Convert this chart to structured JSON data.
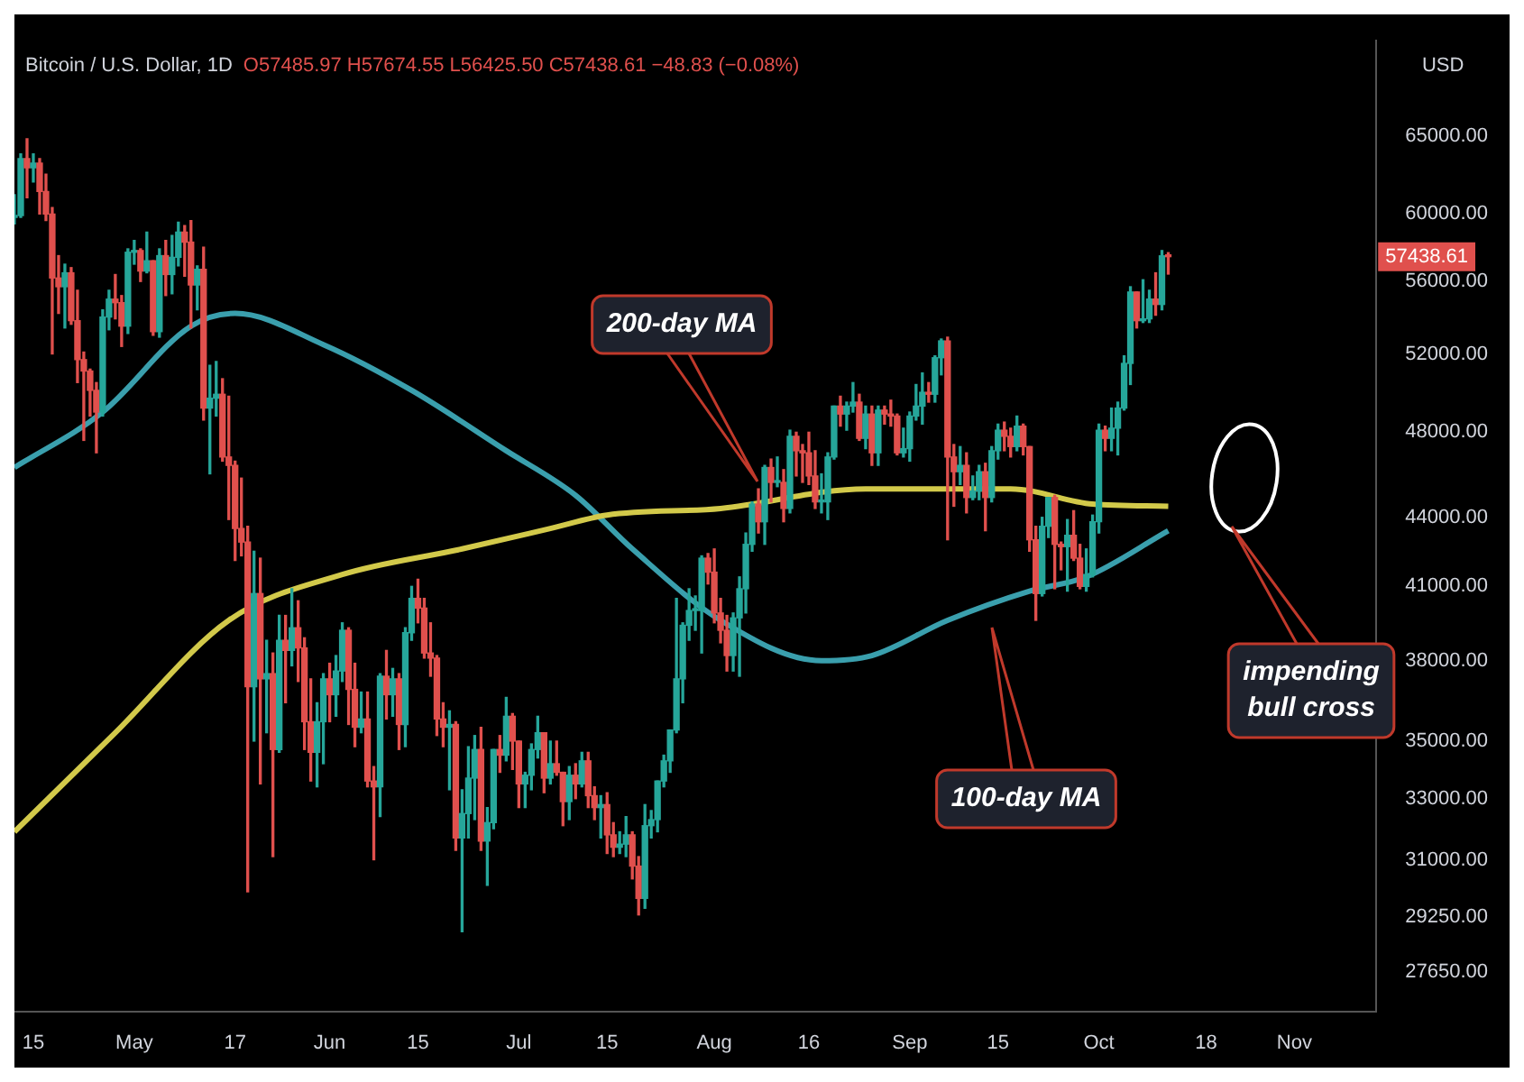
{
  "chart_data": {
    "type": "candlestick",
    "title": "Bitcoin / U.S. Dollar, 1D",
    "subtitle": "O57485.97 H57674.55 L56425.50 C57438.61 −48.83 (−0.08%)",
    "ylabel": "USD",
    "log": true,
    "xlim": [
      "--04-12",
      "--11-14"
    ],
    "xticks": [
      {
        "value": "--04-15",
        "label": "15"
      },
      {
        "value": "--05-01",
        "label": "May"
      },
      {
        "value": "--05-17",
        "label": "17"
      },
      {
        "value": "--06-01",
        "label": "Jun"
      },
      {
        "value": "--06-15",
        "label": "15"
      },
      {
        "value": "--07-01",
        "label": "Jul"
      },
      {
        "value": "--07-15",
        "label": "15"
      },
      {
        "value": "--08-01",
        "label": "Aug"
      },
      {
        "value": "--08-16",
        "label": "16"
      },
      {
        "value": "--09-01",
        "label": "Sep"
      },
      {
        "value": "--09-15",
        "label": "15"
      },
      {
        "value": "--10-01",
        "label": "Oct"
      },
      {
        "value": "--10-18",
        "label": "18"
      },
      {
        "value": "--11-01",
        "label": "Nov"
      }
    ],
    "ylim": [
      26550,
      71630
    ],
    "yticks": [
      {
        "value": 65000,
        "label": "65000.00"
      },
      {
        "value": 60000,
        "label": "60000.00"
      },
      {
        "value": 56000,
        "label": "56000.00"
      },
      {
        "value": 52000,
        "label": "52000.00"
      },
      {
        "value": 48000,
        "label": "48000.00"
      },
      {
        "value": 44000,
        "label": "44000.00"
      },
      {
        "value": 41000,
        "label": "41000.00"
      },
      {
        "value": 38000,
        "label": "38000.00"
      },
      {
        "value": 35000,
        "label": "35000.00"
      },
      {
        "value": 33000,
        "label": "33000.00"
      },
      {
        "value": 31000,
        "label": "31000.00"
      },
      {
        "value": 29250,
        "label": "29250.00"
      },
      {
        "value": 27650,
        "label": "27650.00"
      }
    ],
    "x": [
      "--04-12",
      "--04-13",
      "--04-14",
      "--04-15",
      "--04-16",
      "--04-17",
      "--04-18",
      "--04-19",
      "--04-20",
      "--04-21",
      "--04-22",
      "--04-23",
      "--04-24",
      "--04-25",
      "--04-26",
      "--04-27",
      "--04-28",
      "--04-29",
      "--04-30",
      "--05-01",
      "--05-02",
      "--05-03",
      "--05-04",
      "--05-05",
      "--05-06",
      "--05-07",
      "--05-08",
      "--05-09",
      "--05-10",
      "--05-11",
      "--05-12",
      "--05-13",
      "--05-14",
      "--05-15",
      "--05-16",
      "--05-17",
      "--05-18",
      "--05-19",
      "--05-20",
      "--05-21",
      "--05-22",
      "--05-23",
      "--05-24",
      "--05-25",
      "--05-26",
      "--05-27",
      "--05-28",
      "--05-29",
      "--05-30",
      "--05-31",
      "--06-01",
      "--06-02",
      "--06-03",
      "--06-04",
      "--06-05",
      "--06-06",
      "--06-07",
      "--06-08",
      "--06-09",
      "--06-10",
      "--06-11",
      "--06-12",
      "--06-13",
      "--06-14",
      "--06-15",
      "--06-16",
      "--06-17",
      "--06-18",
      "--06-19",
      "--06-20",
      "--06-21",
      "--06-22",
      "--06-23",
      "--06-24",
      "--06-25",
      "--06-26",
      "--06-27",
      "--06-28",
      "--06-29",
      "--06-30",
      "--07-01",
      "--07-02",
      "--07-03",
      "--07-04",
      "--07-05",
      "--07-06",
      "--07-07",
      "--07-08",
      "--07-09",
      "--07-10",
      "--07-11",
      "--07-12",
      "--07-13",
      "--07-14",
      "--07-15",
      "--07-16",
      "--07-17",
      "--07-18",
      "--07-19",
      "--07-20",
      "--07-21",
      "--07-22",
      "--07-23",
      "--07-24",
      "--07-25",
      "--07-26",
      "--07-27",
      "--07-28",
      "--07-29",
      "--07-30",
      "--07-31",
      "--08-01",
      "--08-02",
      "--08-03",
      "--08-04",
      "--08-05",
      "--08-06",
      "--08-07",
      "--08-08",
      "--08-09",
      "--08-10",
      "--08-11",
      "--08-12",
      "--08-13",
      "--08-14",
      "--08-15",
      "--08-16",
      "--08-17",
      "--08-18",
      "--08-19",
      "--08-20",
      "--08-21",
      "--08-22",
      "--08-23",
      "--08-24",
      "--08-25",
      "--08-26",
      "--08-27",
      "--08-28",
      "--08-29",
      "--08-30",
      "--08-31",
      "--09-01",
      "--09-02",
      "--09-03",
      "--09-04",
      "--09-05",
      "--09-06",
      "--09-07",
      "--09-08",
      "--09-09",
      "--09-10",
      "--09-11",
      "--09-12",
      "--09-13",
      "--09-14",
      "--09-15",
      "--09-16",
      "--09-17",
      "--09-18",
      "--09-19",
      "--09-20",
      "--09-21",
      "--09-22",
      "--09-23",
      "--09-24",
      "--09-25",
      "--09-26",
      "--09-27",
      "--09-28",
      "--09-29",
      "--09-30",
      "--10-01",
      "--10-02",
      "--10-03",
      "--10-04",
      "--10-05",
      "--10-06",
      "--10-07",
      "--10-08",
      "--10-09",
      "--10-10",
      "--10-11",
      "--10-12"
    ],
    "ohlc": [
      [
        59800,
        61200,
        59400,
        59900
      ],
      [
        59900,
        63800,
        59800,
        63500
      ],
      [
        63500,
        64800,
        61000,
        62900
      ],
      [
        62900,
        63800,
        62000,
        63200
      ],
      [
        63200,
        63500,
        60000,
        61400
      ],
      [
        61400,
        62500,
        59600,
        60000
      ],
      [
        60000,
        60400,
        52000,
        56200
      ],
      [
        56200,
        57500,
        54200,
        55700
      ],
      [
        55700,
        57000,
        53400,
        56500
      ],
      [
        56500,
        56800,
        53600,
        53800
      ],
      [
        53800,
        55500,
        50500,
        51700
      ],
      [
        51700,
        52100,
        47600,
        51100
      ],
      [
        51100,
        51200,
        48800,
        50100
      ],
      [
        50100,
        50500,
        47000,
        49000
      ],
      [
        49000,
        54400,
        48800,
        54000
      ],
      [
        54000,
        55500,
        53300,
        55000
      ],
      [
        55000,
        56400,
        53900,
        54800
      ],
      [
        54800,
        55200,
        52400,
        53500
      ],
      [
        53500,
        57900,
        53100,
        57700
      ],
      [
        57700,
        58400,
        57000,
        57800
      ],
      [
        57800,
        57900,
        56000,
        56600
      ],
      [
        56600,
        58900,
        56500,
        57200
      ],
      [
        57200,
        57200,
        53000,
        53200
      ],
      [
        53200,
        57900,
        52900,
        57500
      ],
      [
        57500,
        58400,
        55200,
        56400
      ],
      [
        56400,
        58700,
        55300,
        57400
      ],
      [
        57400,
        59500,
        56900,
        58900
      ],
      [
        58900,
        59300,
        56300,
        58300
      ],
      [
        58300,
        59600,
        53400,
        55800
      ],
      [
        55800,
        56900,
        54400,
        56700
      ],
      [
        56700,
        58000,
        48600,
        49200
      ],
      [
        49200,
        51400,
        46000,
        49700
      ],
      [
        49700,
        51600,
        48800,
        49900
      ],
      [
        49900,
        50700,
        46600,
        46800
      ],
      [
        46800,
        49800,
        43900,
        46400
      ],
      [
        46400,
        46600,
        42100,
        43500
      ],
      [
        43500,
        45800,
        42300,
        42900
      ],
      [
        42900,
        43600,
        30000,
        37000
      ],
      [
        37000,
        42500,
        35000,
        40700
      ],
      [
        40700,
        42200,
        33500,
        37300
      ],
      [
        37300,
        38800,
        35300,
        37500
      ],
      [
        37500,
        38300,
        31100,
        34700
      ],
      [
        34700,
        39800,
        34600,
        38800
      ],
      [
        38800,
        39800,
        36400,
        38400
      ],
      [
        38400,
        40900,
        37800,
        39300
      ],
      [
        39300,
        40400,
        37200,
        38500
      ],
      [
        38500,
        38900,
        34700,
        35700
      ],
      [
        35700,
        37300,
        33600,
        34600
      ],
      [
        34600,
        36400,
        33400,
        35700
      ],
      [
        35700,
        37500,
        34200,
        37300
      ],
      [
        37300,
        37900,
        35700,
        36700
      ],
      [
        36700,
        38200,
        35900,
        37600
      ],
      [
        37600,
        39500,
        37200,
        39200
      ],
      [
        39200,
        39300,
        35600,
        36900
      ],
      [
        36900,
        37900,
        34800,
        35500
      ],
      [
        35500,
        36800,
        35300,
        35800
      ],
      [
        35800,
        36800,
        33400,
        33600
      ],
      [
        33600,
        34100,
        31000,
        33400
      ],
      [
        33400,
        37500,
        32400,
        37400
      ],
      [
        37400,
        38400,
        35800,
        36700
      ],
      [
        36700,
        37700,
        35900,
        37300
      ],
      [
        37300,
        37500,
        34700,
        35600
      ],
      [
        35600,
        39300,
        34800,
        39100
      ],
      [
        39100,
        41000,
        38800,
        40500
      ],
      [
        40500,
        41300,
        39500,
        40100
      ],
      [
        40100,
        40500,
        38100,
        38300
      ],
      [
        38300,
        39500,
        37400,
        38100
      ],
      [
        38100,
        38200,
        35200,
        35800
      ],
      [
        35800,
        36400,
        34800,
        35500
      ],
      [
        35500,
        36100,
        33300,
        35600
      ],
      [
        35600,
        35700,
        31300,
        31700
      ],
      [
        31700,
        33300,
        28800,
        32500
      ],
      [
        32500,
        34800,
        31700,
        33700
      ],
      [
        33700,
        35200,
        32300,
        34700
      ],
      [
        34700,
        35500,
        31300,
        31600
      ],
      [
        31600,
        32700,
        30200,
        32200
      ],
      [
        32200,
        34700,
        32000,
        34700
      ],
      [
        34700,
        35200,
        33900,
        34500
      ],
      [
        34500,
        36600,
        34300,
        35900
      ],
      [
        35900,
        36000,
        34000,
        35000
      ],
      [
        35000,
        35000,
        32700,
        33500
      ],
      [
        33500,
        33900,
        32700,
        33800
      ],
      [
        33800,
        34900,
        33300,
        34700
      ],
      [
        34700,
        35900,
        34400,
        35300
      ],
      [
        35300,
        35300,
        33200,
        33700
      ],
      [
        33700,
        35000,
        33500,
        34200
      ],
      [
        34200,
        35000,
        33800,
        33900
      ],
      [
        33900,
        33900,
        32100,
        32900
      ],
      [
        32900,
        34100,
        32300,
        33800
      ],
      [
        33800,
        34200,
        33000,
        33500
      ],
      [
        33500,
        34600,
        33400,
        34300
      ],
      [
        34300,
        34600,
        32700,
        33100
      ],
      [
        33100,
        33400,
        32300,
        32700
      ],
      [
        32700,
        33100,
        31700,
        32800
      ],
      [
        32800,
        33200,
        31200,
        31800
      ],
      [
        31800,
        32200,
        31100,
        31400
      ],
      [
        31400,
        31900,
        31200,
        31500
      ],
      [
        31500,
        32400,
        31100,
        31800
      ],
      [
        31800,
        31900,
        30400,
        30800
      ],
      [
        30800,
        31100,
        29300,
        29800
      ],
      [
        29800,
        32800,
        29500,
        32100
      ],
      [
        32100,
        32600,
        31700,
        32300
      ],
      [
        32300,
        33600,
        31900,
        33600
      ],
      [
        33600,
        34500,
        33400,
        34300
      ],
      [
        34300,
        35400,
        33900,
        35400
      ],
      [
        35400,
        40500,
        35300,
        37300
      ],
      [
        37300,
        39500,
        36400,
        39400
      ],
      [
        39400,
        40900,
        38800,
        40000
      ],
      [
        40000,
        40600,
        39200,
        40000
      ],
      [
        40000,
        42300,
        38300,
        42200
      ],
      [
        42200,
        42400,
        41100,
        41600
      ],
      [
        41600,
        42600,
        39500,
        39900
      ],
      [
        39900,
        40500,
        38700,
        39200
      ],
      [
        39200,
        39800,
        37600,
        38200
      ],
      [
        38200,
        39900,
        37600,
        39700
      ],
      [
        39700,
        41400,
        37400,
        40900
      ],
      [
        40900,
        43300,
        39900,
        42800
      ],
      [
        42800,
        44700,
        42500,
        44600
      ],
      [
        44600,
        45300,
        43300,
        43800
      ],
      [
        43800,
        46400,
        42800,
        46300
      ],
      [
        46300,
        46700,
        44700,
        45600
      ],
      [
        45600,
        46800,
        45400,
        45600
      ],
      [
        45600,
        46200,
        43800,
        44400
      ],
      [
        44400,
        48100,
        44200,
        47800
      ],
      [
        47800,
        48000,
        45900,
        47100
      ],
      [
        47100,
        47400,
        45600,
        47000
      ],
      [
        47000,
        48000,
        45500,
        45900
      ],
      [
        45900,
        47100,
        44400,
        44700
      ],
      [
        44700,
        46000,
        44200,
        44700
      ],
      [
        44700,
        47000,
        43900,
        46800
      ],
      [
        46800,
        49300,
        46700,
        49300
      ],
      [
        49300,
        49800,
        48300,
        48900
      ],
      [
        48900,
        49500,
        48100,
        49300
      ],
      [
        49300,
        50500,
        49000,
        49500
      ],
      [
        49500,
        49900,
        47600,
        47700
      ],
      [
        47700,
        49300,
        47200,
        48900
      ],
      [
        48900,
        49300,
        46400,
        47000
      ],
      [
        47000,
        49300,
        46400,
        49100
      ],
      [
        49100,
        49300,
        48400,
        48900
      ],
      [
        48900,
        49600,
        48300,
        48800
      ],
      [
        48800,
        48900,
        46900,
        47000
      ],
      [
        47000,
        48200,
        46800,
        47200
      ],
      [
        47200,
        49000,
        46600,
        48800
      ],
      [
        48800,
        50400,
        48600,
        49300
      ],
      [
        49300,
        51000,
        48400,
        50000
      ],
      [
        50000,
        50500,
        49500,
        49900
      ],
      [
        49900,
        51900,
        49500,
        51800
      ],
      [
        51800,
        52800,
        50900,
        52700
      ],
      [
        52700,
        52900,
        43000,
        46800
      ],
      [
        46800,
        47400,
        44500,
        46100
      ],
      [
        46100,
        47300,
        45500,
        46400
      ],
      [
        46400,
        47000,
        44200,
        44900
      ],
      [
        44900,
        45900,
        44800,
        45200
      ],
      [
        45200,
        46400,
        44800,
        46100
      ],
      [
        46100,
        46500,
        43400,
        44900
      ],
      [
        44900,
        47300,
        44700,
        47100
      ],
      [
        47100,
        48400,
        46700,
        48100
      ],
      [
        48100,
        48500,
        47100,
        47800
      ],
      [
        47800,
        48200,
        46800,
        47300
      ],
      [
        47300,
        48800,
        47100,
        48300
      ],
      [
        48300,
        48400,
        46900,
        47300
      ],
      [
        47300,
        47300,
        42500,
        43000
      ],
      [
        43000,
        43600,
        39600,
        40700
      ],
      [
        40700,
        44000,
        40600,
        43600
      ],
      [
        43600,
        44900,
        43100,
        44900
      ],
      [
        44900,
        45000,
        40900,
        42800
      ],
      [
        42800,
        42900,
        41700,
        42700
      ],
      [
        42700,
        43900,
        40800,
        43200
      ],
      [
        43200,
        44300,
        42100,
        42200
      ],
      [
        42200,
        42800,
        40900,
        41000
      ],
      [
        41000,
        42600,
        40800,
        41500
      ],
      [
        41500,
        44100,
        41400,
        43800
      ],
      [
        43800,
        48400,
        43300,
        48100
      ],
      [
        48100,
        48300,
        47100,
        47700
      ],
      [
        47700,
        49200,
        47100,
        48200
      ],
      [
        48200,
        49500,
        46900,
        49200
      ],
      [
        49200,
        51900,
        49100,
        51500
      ],
      [
        51500,
        55700,
        50400,
        55400
      ],
      [
        55400,
        55400,
        53400,
        53800
      ],
      [
        53800,
        56100,
        53700,
        53900
      ],
      [
        53900,
        55500,
        53700,
        55000
      ],
      [
        55000,
        56500,
        54100,
        54700
      ],
      [
        54700,
        57800,
        54400,
        57487
      ],
      [
        57485.97,
        57674.55,
        56425.5,
        57438.61
      ]
    ],
    "series": [
      {
        "type": "line",
        "color": "#d2c94a",
        "x": [
          "--04-12",
          "--04-28",
          "--05-16",
          "--06-03",
          "--06-22",
          "--07-06",
          "--07-15",
          "--08-02",
          "--08-25",
          "--09-17",
          "--09-30",
          "--10-12"
        ],
        "values": [
          31900,
          35300,
          39600,
          41500,
          42600,
          43500,
          44100,
          44400,
          45300,
          45300,
          44600,
          44500
        ]
      },
      {
        "type": "line",
        "color": "#3a9fad",
        "x": [
          "--04-12",
          "--04-26",
          "--05-10",
          "--05-17",
          "--05-31",
          "--06-14",
          "--06-29",
          "--07-10",
          "--07-19",
          "--08-02",
          "--08-18",
          "--08-26",
          "--09-07",
          "--09-20",
          "--09-29",
          "--10-12"
        ],
        "values": [
          46300,
          49000,
          53500,
          54200,
          52500,
          50100,
          47100,
          45000,
          42600,
          39600,
          38000,
          38200,
          39600,
          40800,
          41400,
          43400
        ]
      }
    ],
    "annotations": [
      "200-day MA",
      "100-day MA",
      "impending bull cross",
      "57438.61"
    ]
  }
}
